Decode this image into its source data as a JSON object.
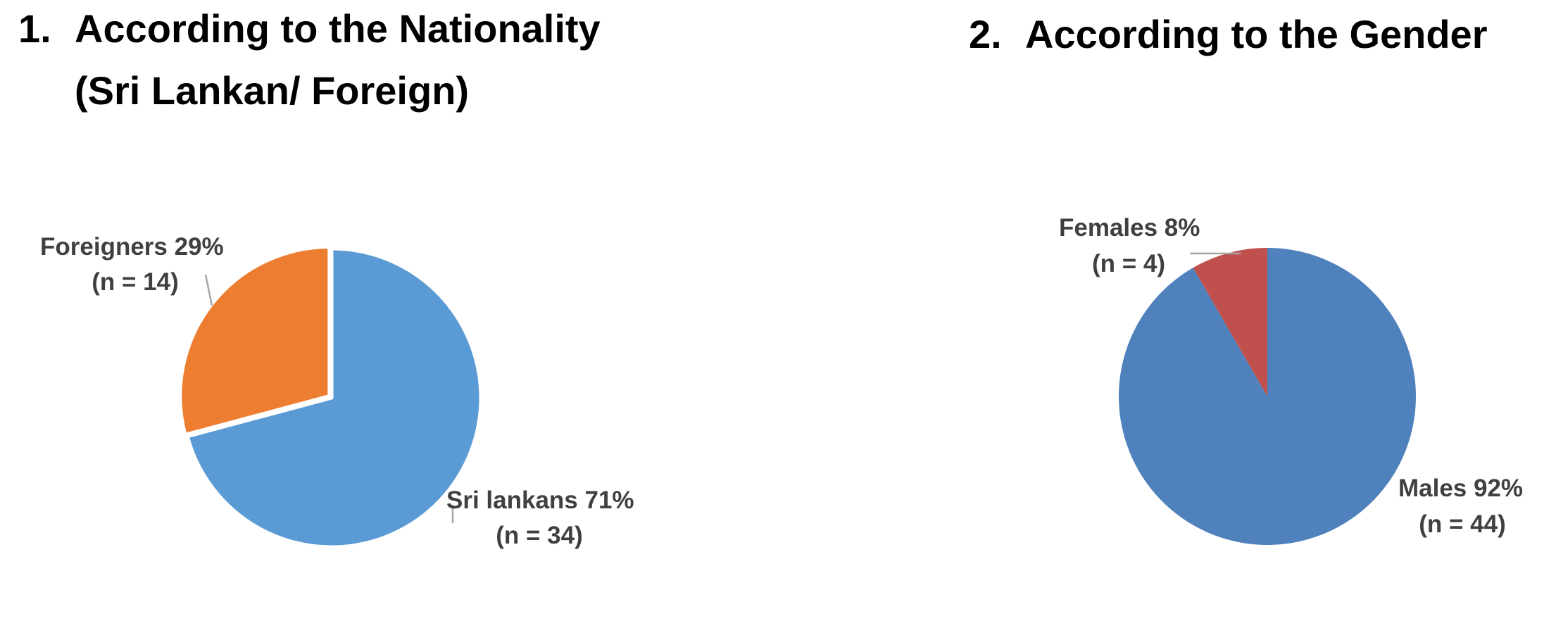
{
  "headings": [
    {
      "number": "1.",
      "line1": "According to the Nationality",
      "line2": "(Sri Lankan/ Foreign)"
    },
    {
      "number": "2.",
      "line1": "According to the Gender"
    }
  ],
  "chart_data": [
    {
      "type": "pie",
      "title": "",
      "slices": [
        {
          "label": "Sri lankans",
          "percent": 71,
          "n_label": "(n = 34)",
          "value": 34,
          "color": "#5B9BD5"
        },
        {
          "label": "Foreigners",
          "percent": 29,
          "n_label": "(n = 14)",
          "value": 14,
          "color": "#ED7D31"
        }
      ],
      "label_texts": [
        "Sri lankans 71%",
        "Foreigners  29%"
      ]
    },
    {
      "type": "pie",
      "title": "",
      "slices": [
        {
          "label": "Males",
          "percent": 92,
          "n_label": "(n = 44)",
          "value": 44,
          "color": "#4F81BD"
        },
        {
          "label": "Females",
          "percent": 8,
          "n_label": "(n = 4)",
          "value": 4,
          "color": "#C0504D"
        }
      ],
      "label_texts": [
        "Males 92%",
        "Females 8%"
      ]
    }
  ]
}
